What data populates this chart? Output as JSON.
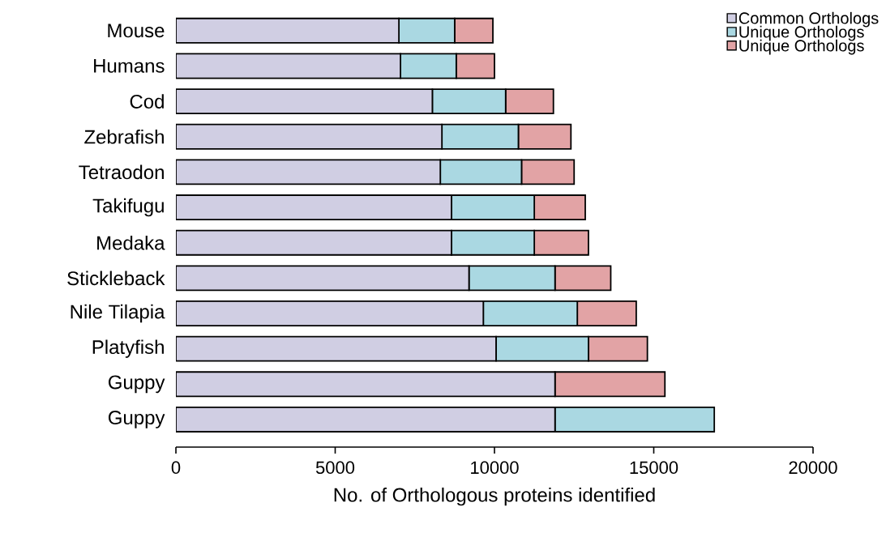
{
  "chart_data": {
    "type": "bar",
    "orientation": "horizontal",
    "stacked": true,
    "xlabel": "No. of Orthologous proteins identified",
    "categories": [
      "Mouse",
      "Humans",
      "Cod",
      "Zebrafish",
      "Tetraodon",
      "Takifugu",
      "Medaka",
      "Stickleback",
      "Nile Tilapia",
      "Platyfish",
      "Guppy",
      "Guppy"
    ],
    "series": [
      {
        "name": "Common Orthologs",
        "color": "#d0cee3",
        "values": [
          7000,
          7050,
          8050,
          8350,
          8300,
          8650,
          8650,
          9200,
          9650,
          10050,
          11900,
          11900
        ]
      },
      {
        "name": "Unique Orthologs",
        "color": "#aad8e2",
        "values": [
          1750,
          1750,
          2300,
          2400,
          2550,
          2600,
          2600,
          2700,
          2950,
          2900,
          0,
          5000
        ]
      },
      {
        "name": "Unique Orthologs",
        "color": "#e2a3a5",
        "values": [
          1200,
          1200,
          1500,
          1650,
          1650,
          1600,
          1700,
          1750,
          1850,
          1850,
          3450,
          0
        ]
      }
    ],
    "xlim": [
      0,
      20000
    ],
    "xticks": [
      0,
      5000,
      10000,
      15000,
      20000
    ],
    "legend": "top right"
  }
}
